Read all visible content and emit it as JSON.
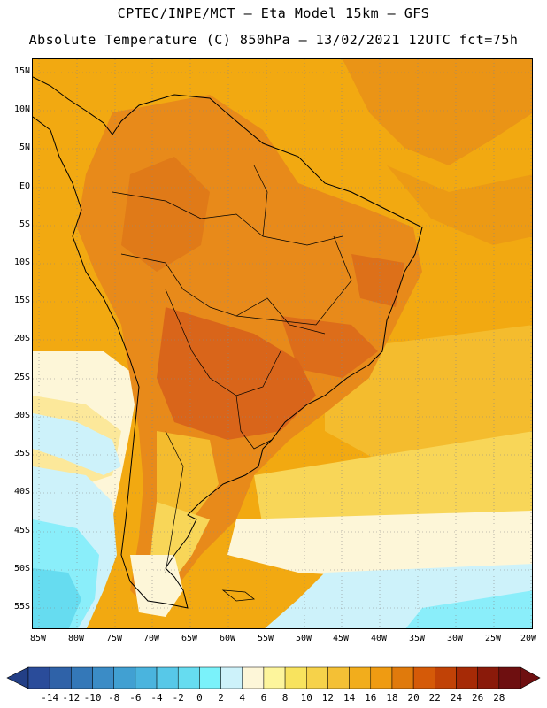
{
  "header": {
    "line1": "CPTEC/INPE/MCT –  Eta Model 15km – GFS",
    "line2": "Absolute Temperature (C) 850hPa – 13/02/2021 12UTC fct=75h"
  },
  "map": {
    "lat_labels": [
      "15N",
      "10N",
      "5N",
      "EQ",
      "5S",
      "10S",
      "15S",
      "20S",
      "25S",
      "30S",
      "35S",
      "40S",
      "45S",
      "50S",
      "55S"
    ],
    "lon_labels": [
      "85W",
      "80W",
      "75W",
      "70W",
      "65W",
      "60W",
      "55W",
      "50W",
      "45W",
      "40W",
      "35W",
      "30W",
      "25W",
      "20W"
    ],
    "grid": "dotted",
    "colors": {
      "background_field": "#f2a911",
      "warm": "#e88a1a",
      "hot": "#d9651a",
      "mild": "#f7c430",
      "cool": "#fbdf72",
      "cream": "#fdf6d8",
      "pale_cyan": "#cdf2fa",
      "cyan": "#8aeefa",
      "land_outline": "#000000"
    }
  },
  "colorbar": {
    "labels": [
      "-14",
      "-12",
      "-10",
      "-8",
      "-6",
      "-4",
      "-2",
      "0",
      "2",
      "4",
      "6",
      "8",
      "10",
      "12",
      "14",
      "16",
      "18",
      "20",
      "22",
      "24",
      "26",
      "28"
    ],
    "colors": [
      "#2a4c9a",
      "#2f62a8",
      "#3478b8",
      "#3b8cc6",
      "#41a0d2",
      "#4ab4de",
      "#57c8e8",
      "#66dcf0",
      "#7af2fa",
      "#cdf2fa",
      "#fdf6d8",
      "#fdf59c",
      "#f8e35e",
      "#f6d24a",
      "#f4c035",
      "#f2ad1c",
      "#ef9b12",
      "#e07a0c",
      "#d55a08",
      "#c14206",
      "#a62a06",
      "#8a1a0a",
      "#6e0f10"
    ]
  }
}
